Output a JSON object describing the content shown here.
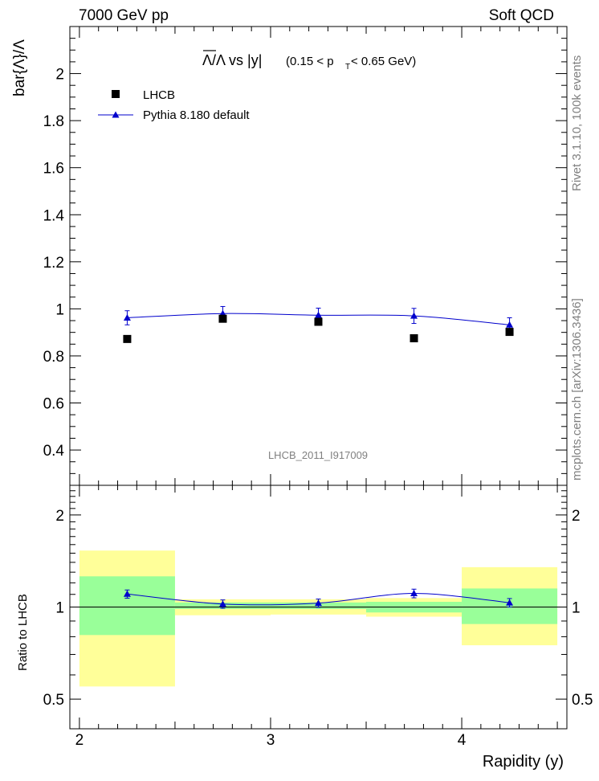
{
  "header": {
    "left": "7000 GeV pp",
    "right": "Soft QCD"
  },
  "side": {
    "rivet": "Rivet 3.1.10,  100k events",
    "mcplots": "mcplots.cern.ch [arXiv:1306.3436]"
  },
  "title": {
    "main": "Λ/Λ vs |y|",
    "range_prefix": "(0.15 < p",
    "range_sub": "T",
    "range_suffix": " < 0.65 GeV)"
  },
  "legend": {
    "data_label": "LHCB",
    "mc_label": "Pythia 8.180 default"
  },
  "watermark": "LHCB_2011_I917009",
  "colors": {
    "mc": "#0000cc",
    "data": "#000000",
    "band_inner": "#99ff99",
    "band_outer": "#ffff99"
  },
  "chart_data": [
    {
      "type": "scatter",
      "panel": "main",
      "ylabel": "bar{Λ}/Λ",
      "ylim": [
        0.25,
        2.2
      ],
      "yticks": [
        "0.4",
        "0.6",
        "0.8",
        "1",
        "1.2",
        "1.4",
        "1.6",
        "1.8",
        "2"
      ],
      "xlim": [
        1.95,
        4.55
      ],
      "series": [
        {
          "name": "LHCB",
          "x": [
            2.25,
            2.75,
            3.25,
            3.75,
            4.25
          ],
          "y": [
            0.872,
            0.958,
            0.945,
            0.875,
            0.902
          ]
        },
        {
          "name": "Pythia 8.180 default",
          "x": [
            2.25,
            2.75,
            3.25,
            3.75,
            4.25
          ],
          "y": [
            0.962,
            0.98,
            0.973,
            0.97,
            0.932
          ],
          "err": [
            0.03,
            0.03,
            0.03,
            0.032,
            0.03
          ]
        }
      ]
    },
    {
      "type": "line",
      "panel": "ratio",
      "ylabel": "Ratio to LHCB",
      "xlabel": "Rapidity (y)",
      "ylim_log": [
        0.4,
        2.5
      ],
      "yticks": [
        "0.5",
        "1",
        "2"
      ],
      "xlim": [
        1.95,
        4.55
      ],
      "xticks": [
        "2",
        "3",
        "4"
      ],
      "series": [
        {
          "name": "Pythia 8.180 default",
          "x": [
            2.25,
            2.75,
            3.25,
            3.75,
            4.25
          ],
          "y": [
            1.103,
            1.023,
            1.03,
            1.108,
            1.033
          ],
          "err": [
            0.034,
            0.032,
            0.032,
            0.036,
            0.033
          ]
        }
      ],
      "bands": [
        {
          "x0": 2.0,
          "x1": 2.5,
          "inner": [
            0.81,
            1.26
          ],
          "outer": [
            0.55,
            1.53
          ]
        },
        {
          "x0": 2.5,
          "x1": 3.0,
          "inner": [
            0.985,
            1.035
          ],
          "outer": [
            0.94,
            1.06
          ]
        },
        {
          "x0": 3.0,
          "x1": 3.5,
          "inner": [
            0.985,
            1.035
          ],
          "outer": [
            0.945,
            1.06
          ]
        },
        {
          "x0": 3.5,
          "x1": 4.0,
          "inner": [
            0.96,
            1.04
          ],
          "outer": [
            0.93,
            1.07
          ]
        },
        {
          "x0": 4.0,
          "x1": 4.5,
          "inner": [
            0.88,
            1.15
          ],
          "outer": [
            0.75,
            1.35
          ]
        }
      ]
    }
  ]
}
